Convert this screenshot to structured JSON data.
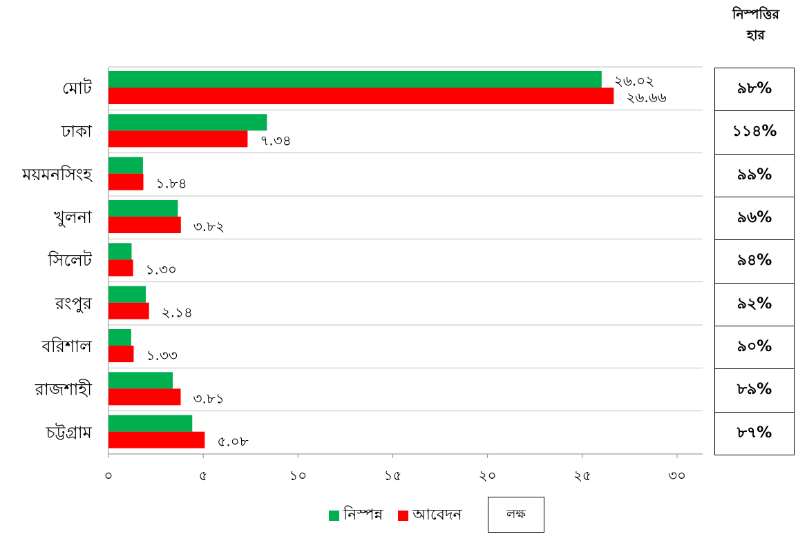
{
  "chart_data": {
    "type": "bar",
    "orientation": "horizontal",
    "categories": [
      "মোট",
      "ঢাকা",
      "ময়মনসিংহ",
      "খুলনা",
      "সিলেট",
      "রংপুর",
      "বরিশাল",
      "রাজশাহী",
      "চট্টগ্রাম"
    ],
    "series": [
      {
        "name": "নিস্পন্ন",
        "color": "#00b050",
        "values": [
          26.02,
          8.36,
          1.82,
          3.66,
          1.22,
          1.97,
          1.2,
          3.39,
          4.42
        ]
      },
      {
        "name": "আবেদন",
        "color": "#ff0000",
        "values": [
          26.66,
          7.34,
          1.84,
          3.82,
          1.3,
          2.14,
          1.33,
          3.81,
          5.08
        ]
      }
    ],
    "value_labels": [
      "২৬.০২",
      "২৬.৬৬",
      "৭.৩৪",
      "১.৮৪",
      "৩.৮২",
      "১.৩০",
      "২.১৪",
      "১.৩৩",
      "৩.৮১",
      "৫.০৮"
    ],
    "xlim": [
      0,
      30
    ],
    "x_ticks": [
      0,
      5,
      10,
      15,
      20,
      25,
      30
    ],
    "x_tick_labels": [
      "০",
      "৫",
      "১০",
      "১৫",
      "২০",
      "২৫",
      "৩০"
    ],
    "grid": "horizontal separators",
    "legend_position": "bottom",
    "unit_label": "লক্ষ",
    "rate_header": [
      "নিস্পত্তির",
      "হার"
    ],
    "rates": [
      "৯৮%",
      "১১৪%",
      "৯৯%",
      "৯৬%",
      "৯৪%",
      "৯২%",
      "৯০%",
      "৮৯%",
      "৮৭%"
    ]
  }
}
